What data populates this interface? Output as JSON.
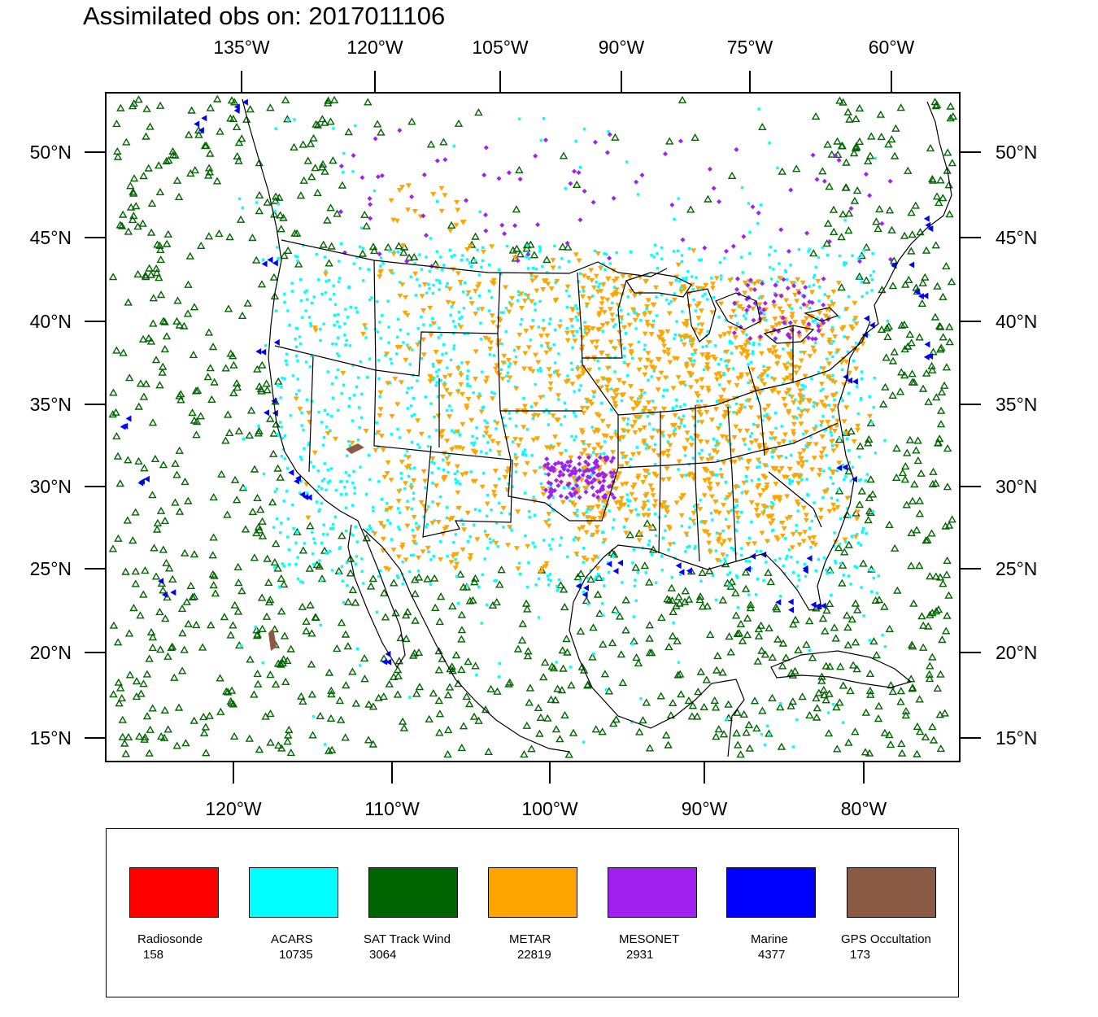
{
  "title": "Assimilated obs on: 2017011106",
  "axes": {
    "top_labels": [
      "135°W",
      "120°W",
      "105°W",
      "90°W",
      "75°W",
      "60°W"
    ],
    "bottom_labels": [
      "120°W",
      "110°W",
      "100°W",
      "90°W",
      "80°W"
    ],
    "left_labels": [
      "50°N",
      "45°N",
      "40°N",
      "35°N",
      "30°N",
      "25°N",
      "20°N",
      "15°N"
    ],
    "right_labels": [
      "50°N",
      "45°N",
      "40°N",
      "35°N",
      "30°N",
      "25°N",
      "20°N",
      "15°N"
    ]
  },
  "legend": {
    "items": [
      {
        "name": "Radiosonde",
        "count": "158",
        "color": "#ff0000"
      },
      {
        "name": "ACARS",
        "count": "10735",
        "color": "#00ffff"
      },
      {
        "name": "SAT Track Wind",
        "count": "3064",
        "color": "#006400"
      },
      {
        "name": "METAR",
        "count": "22819",
        "color": "#ffa500"
      },
      {
        "name": "MESONET",
        "count": "2931",
        "color": "#a020f0"
      },
      {
        "name": "Marine",
        "count": "4377",
        "color": "#0000ff"
      },
      {
        "name": "GPS Occultation",
        "count": "173",
        "color": "#8b5a44"
      }
    ]
  }
}
